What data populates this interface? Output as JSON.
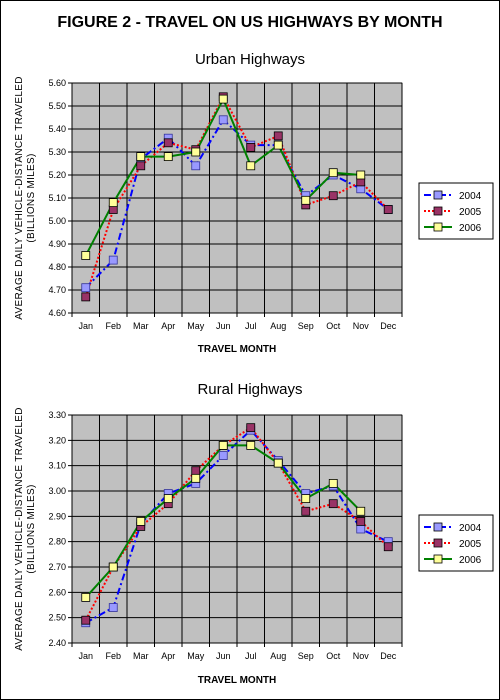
{
  "figure": {
    "title": "FIGURE 2 - TRAVEL ON US HIGHWAYS BY MONTH"
  },
  "colors": {
    "2004": "#0000ff",
    "2005": "#ff0000",
    "2006": "#008000",
    "marker_2004": "#9999ff",
    "marker_2005": "#993366",
    "marker_2006": "#ffff99",
    "plot_background": "#c0c0c0",
    "gridline": "#000000"
  },
  "chart_data": [
    {
      "type": "line",
      "title": "Urban Highways",
      "xlabel": "TRAVEL MONTH",
      "ylabel_line1": "AVERAGE DAILY VEHICLE-DISTANCE TRAVELED",
      "ylabel_line2": "(BILLIONS MILES)",
      "categories": [
        "Jan",
        "Feb",
        "Mar",
        "Apr",
        "May",
        "Jun",
        "Jul",
        "Aug",
        "Sep",
        "Oct",
        "Nov",
        "Dec"
      ],
      "ylim": [
        4.6,
        5.6
      ],
      "yticks": [
        "4.60",
        "4.70",
        "4.80",
        "4.90",
        "5.00",
        "5.10",
        "5.20",
        "5.30",
        "5.40",
        "5.50",
        "5.60"
      ],
      "grid": true,
      "legend_position": "right",
      "series": [
        {
          "name": "2004",
          "style": "dash-dot",
          "values": [
            4.71,
            4.83,
            5.27,
            5.36,
            5.24,
            5.44,
            5.33,
            5.33,
            5.11,
            5.2,
            5.14,
            5.05
          ]
        },
        {
          "name": "2005",
          "style": "dotted",
          "values": [
            4.67,
            5.05,
            5.24,
            5.34,
            5.31,
            5.54,
            5.32,
            5.37,
            5.07,
            5.11,
            5.17,
            5.05
          ]
        },
        {
          "name": "2006",
          "style": "solid",
          "values": [
            4.85,
            5.08,
            5.28,
            5.28,
            5.3,
            5.53,
            5.24,
            5.33,
            5.09,
            5.21,
            5.2,
            null
          ]
        }
      ]
    },
    {
      "type": "line",
      "title": "Rural Highways",
      "xlabel": "TRAVEL MONTH",
      "ylabel_line1": "AVERAGE DAILY VEHICLE-DISTANCE TRAVELED",
      "ylabel_line2": "(BILLIONS MILES)",
      "categories": [
        "Jan",
        "Feb",
        "Mar",
        "Apr",
        "May",
        "Jun",
        "Jul",
        "Aug",
        "Sep",
        "Oct",
        "Nov",
        "Dec"
      ],
      "ylim": [
        2.4,
        3.3
      ],
      "yticks": [
        "2.40",
        "2.50",
        "2.60",
        "2.70",
        "2.80",
        "2.90",
        "3.00",
        "3.10",
        "3.20",
        "3.30"
      ],
      "grid": true,
      "legend_position": "right",
      "series": [
        {
          "name": "2004",
          "style": "dash-dot",
          "values": [
            2.48,
            2.54,
            2.87,
            2.99,
            3.03,
            3.14,
            3.24,
            3.12,
            2.99,
            3.02,
            2.85,
            2.8
          ]
        },
        {
          "name": "2005",
          "style": "dotted",
          "values": [
            2.49,
            2.7,
            2.86,
            2.95,
            3.08,
            3.18,
            3.25,
            3.11,
            2.92,
            2.95,
            2.88,
            2.78
          ]
        },
        {
          "name": "2006",
          "style": "solid",
          "values": [
            2.58,
            2.7,
            2.88,
            2.97,
            3.05,
            3.18,
            3.18,
            3.11,
            2.97,
            3.03,
            2.92,
            null
          ]
        }
      ]
    }
  ]
}
